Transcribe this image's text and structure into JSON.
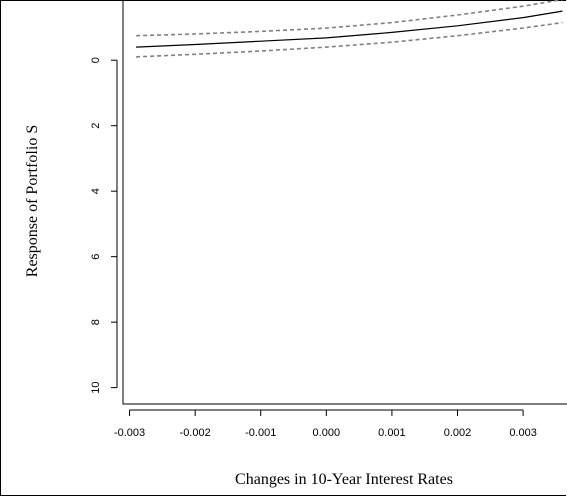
{
  "chart_data": {
    "type": "line",
    "title": "",
    "xlabel": "Changes in 10-Year Interest Rates",
    "ylabel": "Response of Portfolio S",
    "xlim": [
      -0.0031,
      0.0037
    ],
    "ylim": [
      -1.9,
      10.5
    ],
    "y_reversed": true,
    "x_ticks": [
      -0.003,
      -0.002,
      -0.001,
      0.0,
      0.001,
      0.002,
      0.003
    ],
    "x_tick_labels": [
      "-0.003",
      "-0.002",
      "-0.001",
      "0.000",
      "0.001",
      "0.002",
      "0.003"
    ],
    "y_ticks": [
      0,
      2,
      4,
      6,
      8,
      10
    ],
    "y_tick_labels": [
      "0",
      "2",
      "4",
      "6",
      "8",
      "10"
    ],
    "grid": false,
    "series": [
      {
        "style": "solid",
        "color": "#000000",
        "x": [
          -0.0029,
          -0.002,
          -0.001,
          0.0,
          0.001,
          0.002,
          0.003,
          0.0036
        ],
        "y": [
          -0.4,
          -0.48,
          -0.58,
          -0.68,
          -0.85,
          -1.05,
          -1.3,
          -1.5
        ]
      },
      {
        "style": "dashed",
        "color": "#808080",
        "x": [
          -0.0029,
          -0.002,
          -0.001,
          0.0,
          0.001,
          0.002,
          0.003,
          0.0036
        ],
        "y": [
          -0.75,
          -0.8,
          -0.88,
          -0.98,
          -1.15,
          -1.38,
          -1.65,
          -1.85
        ]
      },
      {
        "style": "dashed",
        "color": "#808080",
        "x": [
          -0.0029,
          -0.002,
          -0.001,
          0.0,
          0.001,
          0.002,
          0.003,
          0.0036
        ],
        "y": [
          -0.1,
          -0.18,
          -0.28,
          -0.4,
          -0.55,
          -0.75,
          -0.98,
          -1.15
        ]
      }
    ]
  }
}
